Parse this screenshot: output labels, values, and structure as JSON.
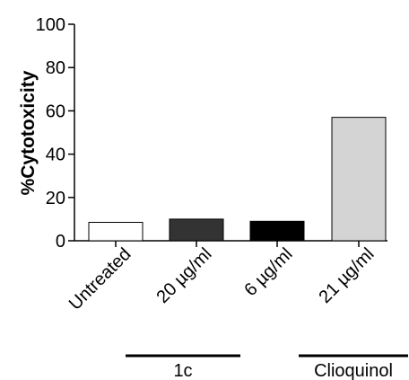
{
  "chart_data": {
    "type": "bar",
    "title": "",
    "xlabel": "",
    "ylabel": "%Cytotoxicity",
    "ylim": [
      0,
      100
    ],
    "yticks": [
      0,
      20,
      40,
      60,
      80,
      100
    ],
    "categories": [
      "Untreated",
      "20 µg/ml",
      "6 µg/ml",
      "21 µg/ml"
    ],
    "values": [
      8.5,
      10,
      9,
      57
    ],
    "bar_colors": [
      "#ffffff",
      "#333333",
      "#000000",
      "#d4d4d4"
    ],
    "bar_stroke": "#000000",
    "groups": [
      {
        "label": "1c",
        "categories": [
          "20 µg/ml",
          "6 µg/ml"
        ]
      },
      {
        "label": "Clioquinol",
        "categories": [
          "21 µg/ml"
        ]
      }
    ],
    "grid": false,
    "legend": "none"
  }
}
